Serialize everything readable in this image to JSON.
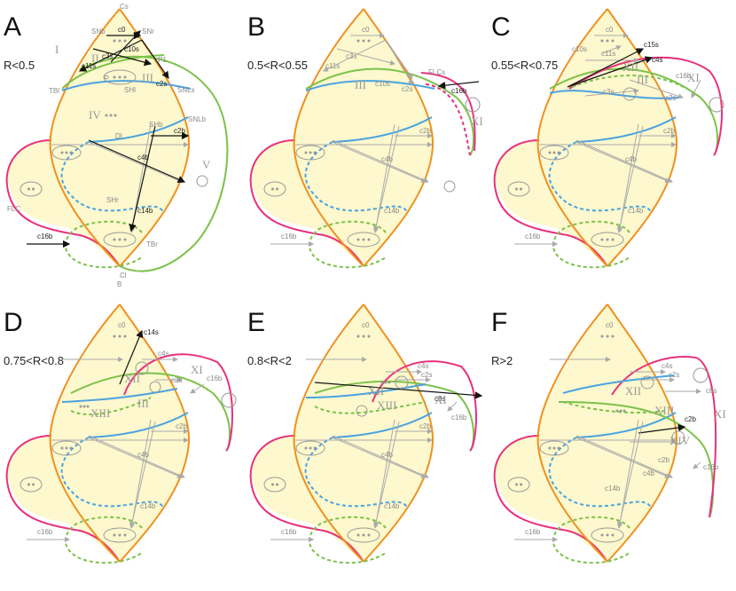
{
  "colors": {
    "fill": "#fdf8cd",
    "orange": "#f0901e",
    "blue": "#4aa3e0",
    "green": "#7cc24a",
    "pink": "#e8317d"
  },
  "panels": [
    {
      "letter": "A",
      "range": "R<0.5",
      "arrows": [
        "c0",
        "c10s",
        "c3s",
        "c11s",
        "c2s",
        "c2b",
        "c4b",
        "c14b",
        "c16b"
      ],
      "labels": [
        "Cs",
        "SNb",
        "SNr",
        "P1",
        "TBl",
        "SHl",
        "SNLs",
        "SHb",
        "SNLb",
        "DL",
        "FLC",
        "SHr",
        "TBr",
        "Cl",
        "B"
      ],
      "regions": [
        "I",
        "II",
        "III",
        "IV",
        "V"
      ]
    },
    {
      "letter": "B",
      "range": "0.5<R<0.55",
      "arrows": [
        "c0",
        "c3s",
        "c11s",
        "c10s",
        "c2s",
        "c16b",
        "c2b",
        "c4b",
        "c14b",
        "c16b"
      ],
      "labels": [
        "FLCs"
      ],
      "regions": [
        "III",
        "XI"
      ]
    },
    {
      "letter": "C",
      "range": "0.55<R<0.75",
      "arrows": [
        "c0",
        "c10s",
        "c11s",
        "c15s",
        "c4s",
        "c3s",
        "c2s",
        "c16b",
        "c2b",
        "c4b",
        "c14b",
        "c16b"
      ],
      "labels": [],
      "regions": [
        "XII",
        "III",
        "XI"
      ]
    },
    {
      "letter": "D",
      "range": "0.75<R<0.8",
      "arrows": [
        "c0",
        "c14s",
        "c4s",
        "c2s",
        "c16b",
        "c2b",
        "c4b",
        "c14b",
        "c16b"
      ],
      "labels": [],
      "regions": [
        "XII",
        "XIII",
        "III",
        "XI"
      ]
    },
    {
      "letter": "E",
      "range": "0.8<R<2",
      "arrows": [
        "c0",
        "c4s",
        "c2s",
        "c8s",
        "c16b",
        "c2b",
        "c4b",
        "c14b",
        "c16b"
      ],
      "labels": [],
      "regions": [
        "XII",
        "XIII",
        "XI"
      ]
    },
    {
      "letter": "F",
      "range": "R>2",
      "arrows": [
        "c0",
        "c4s",
        "c2s",
        "c8s",
        "c2b",
        "c16b",
        "c2b",
        "c4b",
        "c14b",
        "c16b"
      ],
      "labels": [],
      "regions": [
        "XII",
        "XIII",
        "XIV",
        "XI"
      ]
    }
  ]
}
